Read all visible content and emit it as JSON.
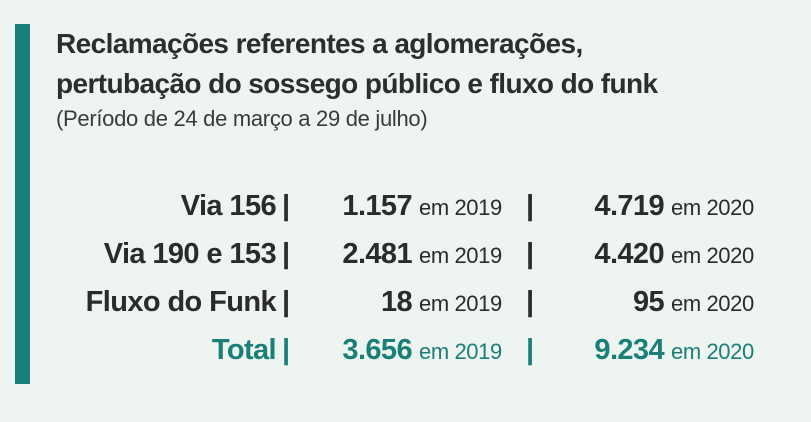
{
  "title": {
    "line1": "Reclamações referentes a aglomerações,",
    "line2": "pertubação do sossego público e fluxo do funk"
  },
  "subtitle": "(Período de 24 de março a 29 de julho)",
  "colors": {
    "accent": "#1a7f78",
    "background": "#eef5f1",
    "text": "#2b2b2b"
  },
  "rows": [
    {
      "label": "Via 156",
      "separator": "|",
      "value_2019": "1.157",
      "unit_2019": "em 2019",
      "separator2": "|",
      "value_2020": "4.719",
      "unit_2020": "em 2020"
    },
    {
      "label": "Via 190 e 153",
      "separator": "|",
      "value_2019": "2.481",
      "unit_2019": "em 2019",
      "separator2": "|",
      "value_2020": "4.420",
      "unit_2020": "em 2020"
    },
    {
      "label": "Fluxo do Funk",
      "separator": "|",
      "value_2019": "18",
      "unit_2019": "em 2019",
      "separator2": "|",
      "value_2020": "95",
      "unit_2020": "em 2020"
    },
    {
      "label": "Total",
      "separator": "|",
      "value_2019": "3.656",
      "unit_2019": "em 2019",
      "separator2": "|",
      "value_2020": "9.234",
      "unit_2020": "em 2020"
    }
  ]
}
